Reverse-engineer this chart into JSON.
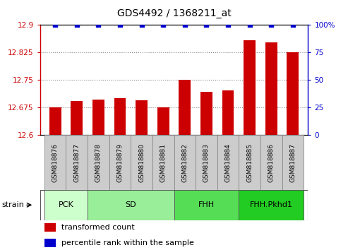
{
  "title": "GDS4492 / 1368211_at",
  "samples": [
    "GSM818876",
    "GSM818877",
    "GSM818878",
    "GSM818879",
    "GSM818880",
    "GSM818881",
    "GSM818882",
    "GSM818883",
    "GSM818884",
    "GSM818885",
    "GSM818886",
    "GSM818887"
  ],
  "transformed_counts": [
    12.675,
    12.693,
    12.697,
    12.7,
    12.694,
    12.675,
    12.75,
    12.718,
    12.722,
    12.858,
    12.852,
    12.825
  ],
  "percentile_ranks": [
    100,
    100,
    100,
    100,
    100,
    100,
    100,
    100,
    100,
    100,
    100,
    100
  ],
  "ymin": 12.6,
  "ymax": 12.9,
  "yticks": [
    12.6,
    12.675,
    12.75,
    12.825,
    12.9
  ],
  "ytick_labels": [
    "12.6",
    "12.675",
    "12.75",
    "12.825",
    "12.9"
  ],
  "right_yticks": [
    0,
    25,
    50,
    75,
    100
  ],
  "right_ytick_labels": [
    "0",
    "25",
    "50",
    "75",
    "100%"
  ],
  "bar_color": "#cc0000",
  "dot_color": "#0000cc",
  "dot_size": 18,
  "groups": [
    {
      "label": "PCK",
      "start": 0,
      "end": 1,
      "color": "#ccffcc"
    },
    {
      "label": "SD",
      "start": 2,
      "end": 5,
      "color": "#99ee99"
    },
    {
      "label": "FHH",
      "start": 6,
      "end": 8,
      "color": "#55dd55"
    },
    {
      "label": "FHH.Pkhd1",
      "start": 9,
      "end": 11,
      "color": "#22cc22"
    }
  ],
  "left_axis_color": "#cc0000",
  "right_axis_color": "#0000cc",
  "grid_color": "#888888",
  "tick_box_color": "#cccccc",
  "tick_box_edge": "#888888"
}
